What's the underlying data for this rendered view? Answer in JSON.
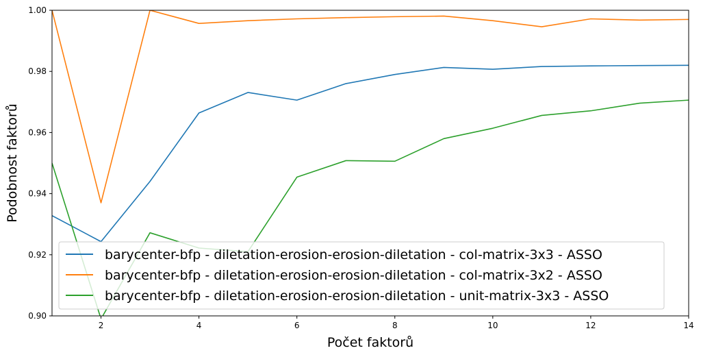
{
  "chart_data": {
    "type": "line",
    "xlabel": "Počet faktorů",
    "ylabel": "Podobnost faktorů",
    "xlim": [
      1,
      14
    ],
    "ylim": [
      0.9,
      1.0
    ],
    "xticks": [
      2,
      4,
      6,
      8,
      10,
      12,
      14
    ],
    "xtick_labels": [
      "2",
      "4",
      "6",
      "8",
      "10",
      "12",
      "14"
    ],
    "yticks": [
      0.9,
      0.92,
      0.94,
      0.96,
      0.98,
      1.0
    ],
    "ytick_labels": [
      "0.90",
      "0.92",
      "0.94",
      "0.96",
      "0.98",
      "1.00"
    ],
    "grid": false,
    "legend_position": "lower-left",
    "x": [
      1,
      2,
      3,
      4,
      5,
      6,
      7,
      8,
      9,
      10,
      11,
      12,
      13,
      14
    ],
    "series": [
      {
        "name": "barycenter-bfp - diletation-erosion-erosion-diletation - col-matrix-3x3 - ASSO",
        "color": "#1f77b4",
        "values": [
          0.9328,
          0.9243,
          0.944,
          0.9664,
          0.9731,
          0.9706,
          0.976,
          0.979,
          0.9813,
          0.9807,
          0.9816,
          0.9818,
          0.9819,
          0.982
        ]
      },
      {
        "name": "barycenter-bfp - diletation-erosion-erosion-diletation - col-matrix-3x2 - ASSO",
        "color": "#ff7f0e",
        "values": [
          1.0,
          0.937,
          1.0,
          0.9957,
          0.9966,
          0.9972,
          0.9976,
          0.9979,
          0.9981,
          0.9966,
          0.9946,
          0.9972,
          0.9968,
          0.997
        ]
      },
      {
        "name": "barycenter-bfp - diletation-erosion-erosion-diletation - unit-matrix-3x3 - ASSO",
        "color": "#2ca02c",
        "values": [
          0.95,
          0.899,
          0.9272,
          0.9222,
          0.921,
          0.9454,
          0.9508,
          0.9506,
          0.958,
          0.9614,
          0.9656,
          0.9671,
          0.9696,
          0.9706
        ]
      }
    ]
  }
}
